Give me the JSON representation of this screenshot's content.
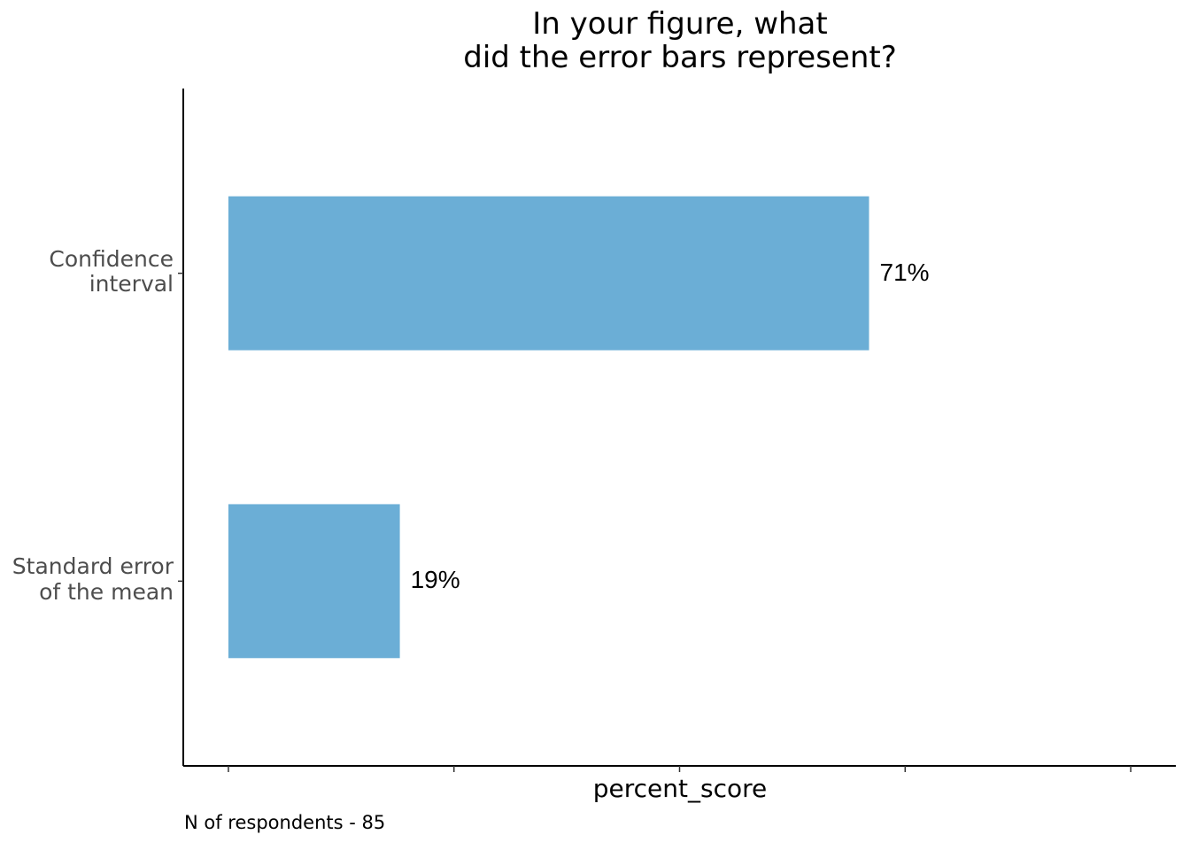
{
  "chart_data": {
    "type": "hbar",
    "title": "In your figure, what\ndid the error bars represent?",
    "categories": [
      "Confidence\ninterval",
      "Standard error\nof the mean"
    ],
    "values": [
      71,
      19
    ],
    "value_labels": [
      "71%",
      "19%"
    ],
    "color": "#6baed6",
    "xlabel": "percent_score",
    "caption": "N of respondents - 85",
    "xlim": [
      -5,
      105
    ],
    "xticks": [
      0,
      25,
      50,
      75,
      100
    ]
  }
}
